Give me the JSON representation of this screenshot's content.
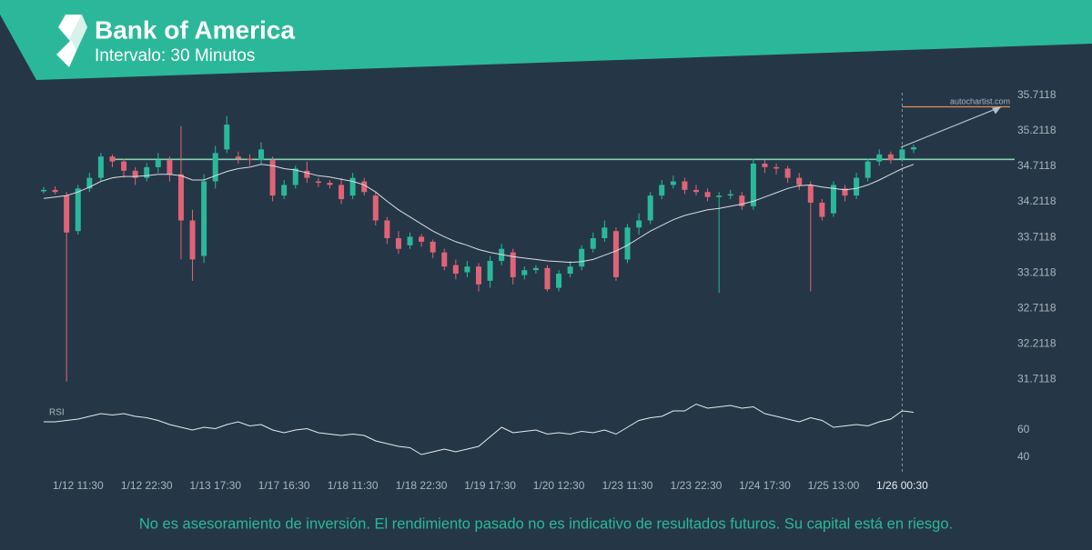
{
  "header": {
    "title": "Bank of America",
    "subtitle": "Intervalo: 30 Minutos"
  },
  "footer": "No es asesoramiento de inversión. El rendimiento pasado no es indicativo de resultados futuros. Su capital está en riesgo.",
  "chart_data": {
    "type": "candlestick",
    "watermark": "autochartist.com",
    "x": [
      null,
      null,
      null,
      "1/12 11:30",
      null,
      null,
      null,
      null,
      null,
      "1/12 22:30",
      null,
      null,
      null,
      null,
      null,
      "1/13 17:30",
      null,
      null,
      null,
      null,
      null,
      "1/17 16:30",
      null,
      null,
      null,
      null,
      null,
      "1/18 11:30",
      null,
      null,
      null,
      null,
      null,
      "1/18 22:30",
      null,
      null,
      null,
      null,
      null,
      "1/19 17:30",
      null,
      null,
      null,
      null,
      null,
      "1/20 12:30",
      null,
      null,
      null,
      null,
      null,
      "1/23 11:30",
      null,
      null,
      null,
      null,
      null,
      "1/23 22:30",
      null,
      null,
      null,
      null,
      null,
      "1/24 17:30",
      null,
      null,
      null,
      null,
      null,
      "1/25 13:00",
      null,
      null,
      null,
      null,
      null,
      "1/26 00:30",
      null
    ],
    "open": [
      34.36,
      34.38,
      34.3,
      33.8,
      34.4,
      34.55,
      34.85,
      34.78,
      34.65,
      34.55,
      34.7,
      34.8,
      34.6,
      33.95,
      33.45,
      34.5,
      34.95,
      34.85,
      34.82,
      34.8,
      34.8,
      34.3,
      34.45,
      34.65,
      34.5,
      34.48,
      34.45,
      34.3,
      34.5,
      34.3,
      33.95,
      33.7,
      33.6,
      33.72,
      33.65,
      33.5,
      33.32,
      33.22,
      33.3,
      33.1,
      33.38,
      33.5,
      33.18,
      33.25,
      33.28,
      33.0,
      33.2,
      33.3,
      33.55,
      33.7,
      33.8,
      33.4,
      33.85,
      33.95,
      34.3,
      34.45,
      34.5,
      34.38,
      34.35,
      34.28,
      34.3,
      34.3,
      34.15,
      34.75,
      34.7,
      34.68,
      34.55,
      34.45,
      34.2,
      34.05,
      34.4,
      34.3,
      34.55,
      34.78,
      34.88,
      34.82,
      34.95
    ],
    "high": [
      34.42,
      34.43,
      34.35,
      34.45,
      34.62,
      34.9,
      34.88,
      34.82,
      34.7,
      34.76,
      34.9,
      34.85,
      35.28,
      34.1,
      34.6,
      35.0,
      35.42,
      34.92,
      34.88,
      35.05,
      34.85,
      34.52,
      34.72,
      34.78,
      34.55,
      34.52,
      34.55,
      34.62,
      34.55,
      34.35,
      34.0,
      33.8,
      33.78,
      33.76,
      33.68,
      33.55,
      33.4,
      33.38,
      33.35,
      33.45,
      33.62,
      33.55,
      33.3,
      33.32,
      33.32,
      33.25,
      33.38,
      33.6,
      33.78,
      33.95,
      33.85,
      33.9,
      34.05,
      34.35,
      34.52,
      34.58,
      34.55,
      34.45,
      34.4,
      34.35,
      34.38,
      34.35,
      34.82,
      34.8,
      34.75,
      34.72,
      34.62,
      34.5,
      34.25,
      34.5,
      34.45,
      34.62,
      34.82,
      34.95,
      34.92,
      35.0,
      35.02
    ],
    "low": [
      34.33,
      34.32,
      31.68,
      33.75,
      34.35,
      34.5,
      34.7,
      34.55,
      34.45,
      34.5,
      34.62,
      34.5,
      33.4,
      33.1,
      33.35,
      34.4,
      34.9,
      34.75,
      34.72,
      34.75,
      34.22,
      34.25,
      34.4,
      34.48,
      34.42,
      34.4,
      34.18,
      34.25,
      34.3,
      33.88,
      33.62,
      33.48,
      33.55,
      33.58,
      33.42,
      33.25,
      33.12,
      33.15,
      32.95,
      33.0,
      33.32,
      33.05,
      33.12,
      33.2,
      32.95,
      32.95,
      33.15,
      33.25,
      33.5,
      33.65,
      33.1,
      33.35,
      33.75,
      33.9,
      34.25,
      34.4,
      34.32,
      34.3,
      34.22,
      32.93,
      34.25,
      34.1,
      34.1,
      34.62,
      34.6,
      34.48,
      34.38,
      32.95,
      33.95,
      34.0,
      34.22,
      34.25,
      34.5,
      34.72,
      34.75,
      34.78,
      34.9
    ],
    "close": [
      34.38,
      34.35,
      33.78,
      34.4,
      34.55,
      34.85,
      34.78,
      34.65,
      34.55,
      34.7,
      34.8,
      34.6,
      33.95,
      33.4,
      34.5,
      34.9,
      35.3,
      34.82,
      34.8,
      34.95,
      34.3,
      34.45,
      34.68,
      34.55,
      34.48,
      34.45,
      34.25,
      34.55,
      34.35,
      33.95,
      33.7,
      33.55,
      33.72,
      33.65,
      33.5,
      33.3,
      33.2,
      33.3,
      33.05,
      33.38,
      33.55,
      33.15,
      33.25,
      33.28,
      32.98,
      33.2,
      33.3,
      33.55,
      33.7,
      33.85,
      33.15,
      33.85,
      33.95,
      34.3,
      34.45,
      34.5,
      34.38,
      34.35,
      34.28,
      34.3,
      34.32,
      34.15,
      34.75,
      34.7,
      34.68,
      34.55,
      34.45,
      34.2,
      34.0,
      34.45,
      34.3,
      34.55,
      34.78,
      34.88,
      34.8,
      34.95,
      34.98
    ],
    "moving_average": [
      34.26,
      34.28,
      34.3,
      34.35,
      34.42,
      34.5,
      34.55,
      34.57,
      34.57,
      34.58,
      34.6,
      34.6,
      34.58,
      34.52,
      34.52,
      34.58,
      34.64,
      34.68,
      34.7,
      34.74,
      34.72,
      34.68,
      34.66,
      34.62,
      34.58,
      34.56,
      34.53,
      34.5,
      34.45,
      34.35,
      34.22,
      34.1,
      34.0,
      33.9,
      33.8,
      33.72,
      33.65,
      33.6,
      33.54,
      33.5,
      33.47,
      33.44,
      33.42,
      33.4,
      33.38,
      33.37,
      33.36,
      33.37,
      33.4,
      33.46,
      33.52,
      33.6,
      33.7,
      33.8,
      33.88,
      33.96,
      34.02,
      34.06,
      34.1,
      34.12,
      34.15,
      34.18,
      34.22,
      34.28,
      34.34,
      34.4,
      34.44,
      34.45,
      34.42,
      34.4,
      34.38,
      34.4,
      34.45,
      34.52,
      34.6,
      34.68,
      34.74
    ],
    "up_color": "#2bb89a",
    "down_color": "#e06377",
    "resistance": 34.81,
    "target": 35.55,
    "ylim": [
      31.6,
      35.8
    ],
    "yticks": [
      35.7118,
      35.2118,
      34.7118,
      34.2118,
      33.7118,
      33.2118,
      32.7118,
      32.2118,
      31.7118
    ],
    "rsi": {
      "label": "RSI",
      "ylim": [
        30,
        85
      ],
      "yticks": [
        40,
        60
      ],
      "values": [
        66,
        66,
        67,
        68,
        70,
        72,
        71,
        72,
        70,
        69,
        67,
        64,
        62,
        60,
        62,
        61,
        64,
        66,
        63,
        64,
        60,
        58,
        60,
        61,
        58,
        57,
        56,
        57,
        56,
        52,
        50,
        48,
        47,
        42,
        44,
        46,
        44,
        46,
        48,
        55,
        62,
        58,
        59,
        60,
        57,
        58,
        57,
        59,
        58,
        60,
        57,
        62,
        67,
        69,
        70,
        74,
        74,
        79,
        76,
        77,
        78,
        76,
        77,
        72,
        70,
        68,
        66,
        69,
        67,
        62,
        63,
        64,
        63,
        66,
        68,
        74,
        73
      ]
    }
  }
}
